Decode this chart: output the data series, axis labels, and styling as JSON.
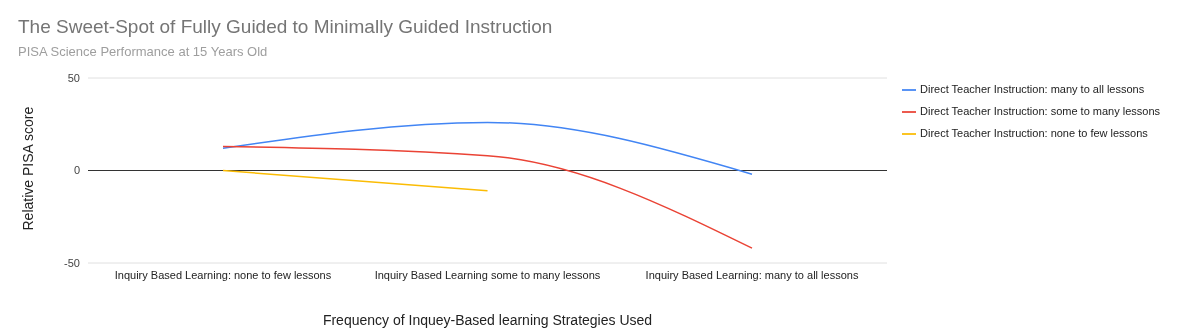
{
  "chart_data": {
    "type": "line",
    "title": "The Sweet-Spot of Fully Guided to Minimally Guided Instruction",
    "subtitle": "PISA Science Performance at 15 Years Old",
    "xlabel": "Frequency of Inquey-Based learning Strategies Used",
    "ylabel": "Relative PISA score",
    "categories": [
      "Inquiry Based Learning: none to few lessons",
      "Inquiry Based Learning some to many lessons",
      "Inquiry Based Learning: many to all lessons"
    ],
    "series": [
      {
        "name": "Direct Teacher Instruction: many to all lessons",
        "color": "#4285f4",
        "values": [
          12,
          26,
          -2
        ]
      },
      {
        "name": "Direct Teacher Instruction: some to many lessons",
        "color": "#ea4335",
        "values": [
          13,
          8,
          -42
        ]
      },
      {
        "name": "Direct Teacher Instruction: none to few lessons",
        "color": "#fbbc04",
        "values": [
          0,
          -11,
          null
        ]
      }
    ],
    "ylim": [
      -50,
      50
    ],
    "yticks": [
      -50,
      0,
      50
    ],
    "grid": "y",
    "legend": "top right",
    "marker": "none",
    "line_style": "solid"
  }
}
